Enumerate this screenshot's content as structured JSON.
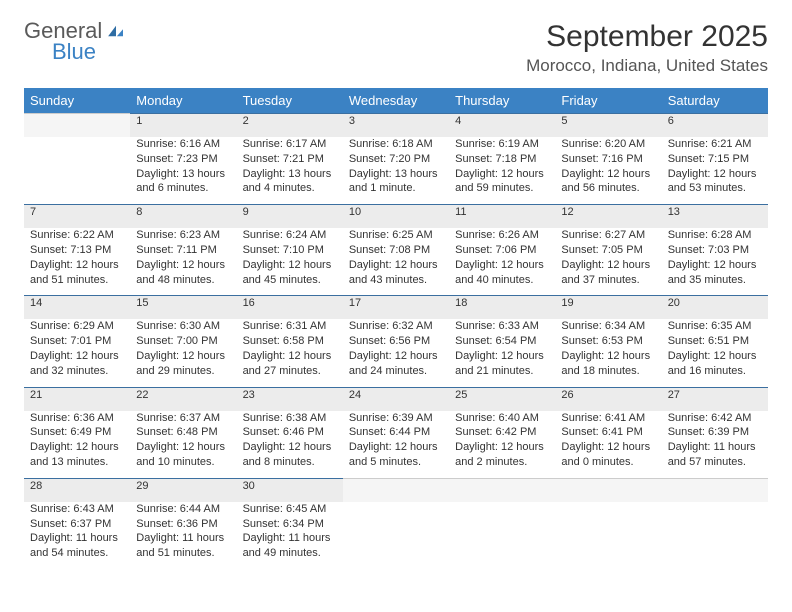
{
  "brand": {
    "word1": "General",
    "word2": "Blue"
  },
  "title": "September 2025",
  "location": "Morocco, Indiana, United States",
  "colors": {
    "header_bg": "#3b82c4",
    "header_text": "#ffffff",
    "daynum_bg": "#ececec",
    "daynum_border": "#3b6fa0",
    "body_text": "#333333",
    "title_color": "#333333",
    "location_color": "#555555",
    "logo_gray": "#5a5a5a",
    "logo_blue": "#3b82c4",
    "background": "#ffffff"
  },
  "typography": {
    "title_fontsize": 30,
    "location_fontsize": 17,
    "header_fontsize": 13,
    "cell_fontsize": 11,
    "daynum_fontsize": 12
  },
  "days_of_week": [
    "Sunday",
    "Monday",
    "Tuesday",
    "Wednesday",
    "Thursday",
    "Friday",
    "Saturday"
  ],
  "weeks": [
    [
      null,
      {
        "n": "1",
        "sunrise": "Sunrise: 6:16 AM",
        "sunset": "Sunset: 7:23 PM",
        "day1": "Daylight: 13 hours",
        "day2": "and 6 minutes."
      },
      {
        "n": "2",
        "sunrise": "Sunrise: 6:17 AM",
        "sunset": "Sunset: 7:21 PM",
        "day1": "Daylight: 13 hours",
        "day2": "and 4 minutes."
      },
      {
        "n": "3",
        "sunrise": "Sunrise: 6:18 AM",
        "sunset": "Sunset: 7:20 PM",
        "day1": "Daylight: 13 hours",
        "day2": "and 1 minute."
      },
      {
        "n": "4",
        "sunrise": "Sunrise: 6:19 AM",
        "sunset": "Sunset: 7:18 PM",
        "day1": "Daylight: 12 hours",
        "day2": "and 59 minutes."
      },
      {
        "n": "5",
        "sunrise": "Sunrise: 6:20 AM",
        "sunset": "Sunset: 7:16 PM",
        "day1": "Daylight: 12 hours",
        "day2": "and 56 minutes."
      },
      {
        "n": "6",
        "sunrise": "Sunrise: 6:21 AM",
        "sunset": "Sunset: 7:15 PM",
        "day1": "Daylight: 12 hours",
        "day2": "and 53 minutes."
      }
    ],
    [
      {
        "n": "7",
        "sunrise": "Sunrise: 6:22 AM",
        "sunset": "Sunset: 7:13 PM",
        "day1": "Daylight: 12 hours",
        "day2": "and 51 minutes."
      },
      {
        "n": "8",
        "sunrise": "Sunrise: 6:23 AM",
        "sunset": "Sunset: 7:11 PM",
        "day1": "Daylight: 12 hours",
        "day2": "and 48 minutes."
      },
      {
        "n": "9",
        "sunrise": "Sunrise: 6:24 AM",
        "sunset": "Sunset: 7:10 PM",
        "day1": "Daylight: 12 hours",
        "day2": "and 45 minutes."
      },
      {
        "n": "10",
        "sunrise": "Sunrise: 6:25 AM",
        "sunset": "Sunset: 7:08 PM",
        "day1": "Daylight: 12 hours",
        "day2": "and 43 minutes."
      },
      {
        "n": "11",
        "sunrise": "Sunrise: 6:26 AM",
        "sunset": "Sunset: 7:06 PM",
        "day1": "Daylight: 12 hours",
        "day2": "and 40 minutes."
      },
      {
        "n": "12",
        "sunrise": "Sunrise: 6:27 AM",
        "sunset": "Sunset: 7:05 PM",
        "day1": "Daylight: 12 hours",
        "day2": "and 37 minutes."
      },
      {
        "n": "13",
        "sunrise": "Sunrise: 6:28 AM",
        "sunset": "Sunset: 7:03 PM",
        "day1": "Daylight: 12 hours",
        "day2": "and 35 minutes."
      }
    ],
    [
      {
        "n": "14",
        "sunrise": "Sunrise: 6:29 AM",
        "sunset": "Sunset: 7:01 PM",
        "day1": "Daylight: 12 hours",
        "day2": "and 32 minutes."
      },
      {
        "n": "15",
        "sunrise": "Sunrise: 6:30 AM",
        "sunset": "Sunset: 7:00 PM",
        "day1": "Daylight: 12 hours",
        "day2": "and 29 minutes."
      },
      {
        "n": "16",
        "sunrise": "Sunrise: 6:31 AM",
        "sunset": "Sunset: 6:58 PM",
        "day1": "Daylight: 12 hours",
        "day2": "and 27 minutes."
      },
      {
        "n": "17",
        "sunrise": "Sunrise: 6:32 AM",
        "sunset": "Sunset: 6:56 PM",
        "day1": "Daylight: 12 hours",
        "day2": "and 24 minutes."
      },
      {
        "n": "18",
        "sunrise": "Sunrise: 6:33 AM",
        "sunset": "Sunset: 6:54 PM",
        "day1": "Daylight: 12 hours",
        "day2": "and 21 minutes."
      },
      {
        "n": "19",
        "sunrise": "Sunrise: 6:34 AM",
        "sunset": "Sunset: 6:53 PM",
        "day1": "Daylight: 12 hours",
        "day2": "and 18 minutes."
      },
      {
        "n": "20",
        "sunrise": "Sunrise: 6:35 AM",
        "sunset": "Sunset: 6:51 PM",
        "day1": "Daylight: 12 hours",
        "day2": "and 16 minutes."
      }
    ],
    [
      {
        "n": "21",
        "sunrise": "Sunrise: 6:36 AM",
        "sunset": "Sunset: 6:49 PM",
        "day1": "Daylight: 12 hours",
        "day2": "and 13 minutes."
      },
      {
        "n": "22",
        "sunrise": "Sunrise: 6:37 AM",
        "sunset": "Sunset: 6:48 PM",
        "day1": "Daylight: 12 hours",
        "day2": "and 10 minutes."
      },
      {
        "n": "23",
        "sunrise": "Sunrise: 6:38 AM",
        "sunset": "Sunset: 6:46 PM",
        "day1": "Daylight: 12 hours",
        "day2": "and 8 minutes."
      },
      {
        "n": "24",
        "sunrise": "Sunrise: 6:39 AM",
        "sunset": "Sunset: 6:44 PM",
        "day1": "Daylight: 12 hours",
        "day2": "and 5 minutes."
      },
      {
        "n": "25",
        "sunrise": "Sunrise: 6:40 AM",
        "sunset": "Sunset: 6:42 PM",
        "day1": "Daylight: 12 hours",
        "day2": "and 2 minutes."
      },
      {
        "n": "26",
        "sunrise": "Sunrise: 6:41 AM",
        "sunset": "Sunset: 6:41 PM",
        "day1": "Daylight: 12 hours",
        "day2": "and 0 minutes."
      },
      {
        "n": "27",
        "sunrise": "Sunrise: 6:42 AM",
        "sunset": "Sunset: 6:39 PM",
        "day1": "Daylight: 11 hours",
        "day2": "and 57 minutes."
      }
    ],
    [
      {
        "n": "28",
        "sunrise": "Sunrise: 6:43 AM",
        "sunset": "Sunset: 6:37 PM",
        "day1": "Daylight: 11 hours",
        "day2": "and 54 minutes."
      },
      {
        "n": "29",
        "sunrise": "Sunrise: 6:44 AM",
        "sunset": "Sunset: 6:36 PM",
        "day1": "Daylight: 11 hours",
        "day2": "and 51 minutes."
      },
      {
        "n": "30",
        "sunrise": "Sunrise: 6:45 AM",
        "sunset": "Sunset: 6:34 PM",
        "day1": "Daylight: 11 hours",
        "day2": "and 49 minutes."
      },
      null,
      null,
      null,
      null
    ]
  ]
}
